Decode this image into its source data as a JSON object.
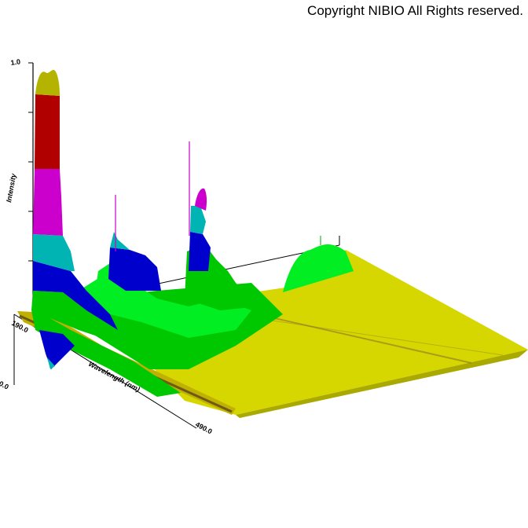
{
  "copyright": "Copyright NIBIO All Rights reserved.",
  "chart_data": {
    "type": "3d-surface",
    "title": "",
    "zlabel": "Intensity",
    "xlabel": "Wavelength (nm)",
    "x_ticks": [
      "190.0",
      "490.0"
    ],
    "z_ticks": [
      "1.0"
    ],
    "y_ticks": [
      "0.0"
    ],
    "colors": {
      "band_base": "#00c800",
      "band_low": "#00ee22",
      "band_blue": "#0000cc",
      "band_cyan": "#00b4b4",
      "band_magenta": "#cc00cc",
      "band_red": "#b00000",
      "band_top": "#b4b400",
      "plateau": "#d6d600",
      "plateau_stripe": "#8a7a2a"
    }
  }
}
